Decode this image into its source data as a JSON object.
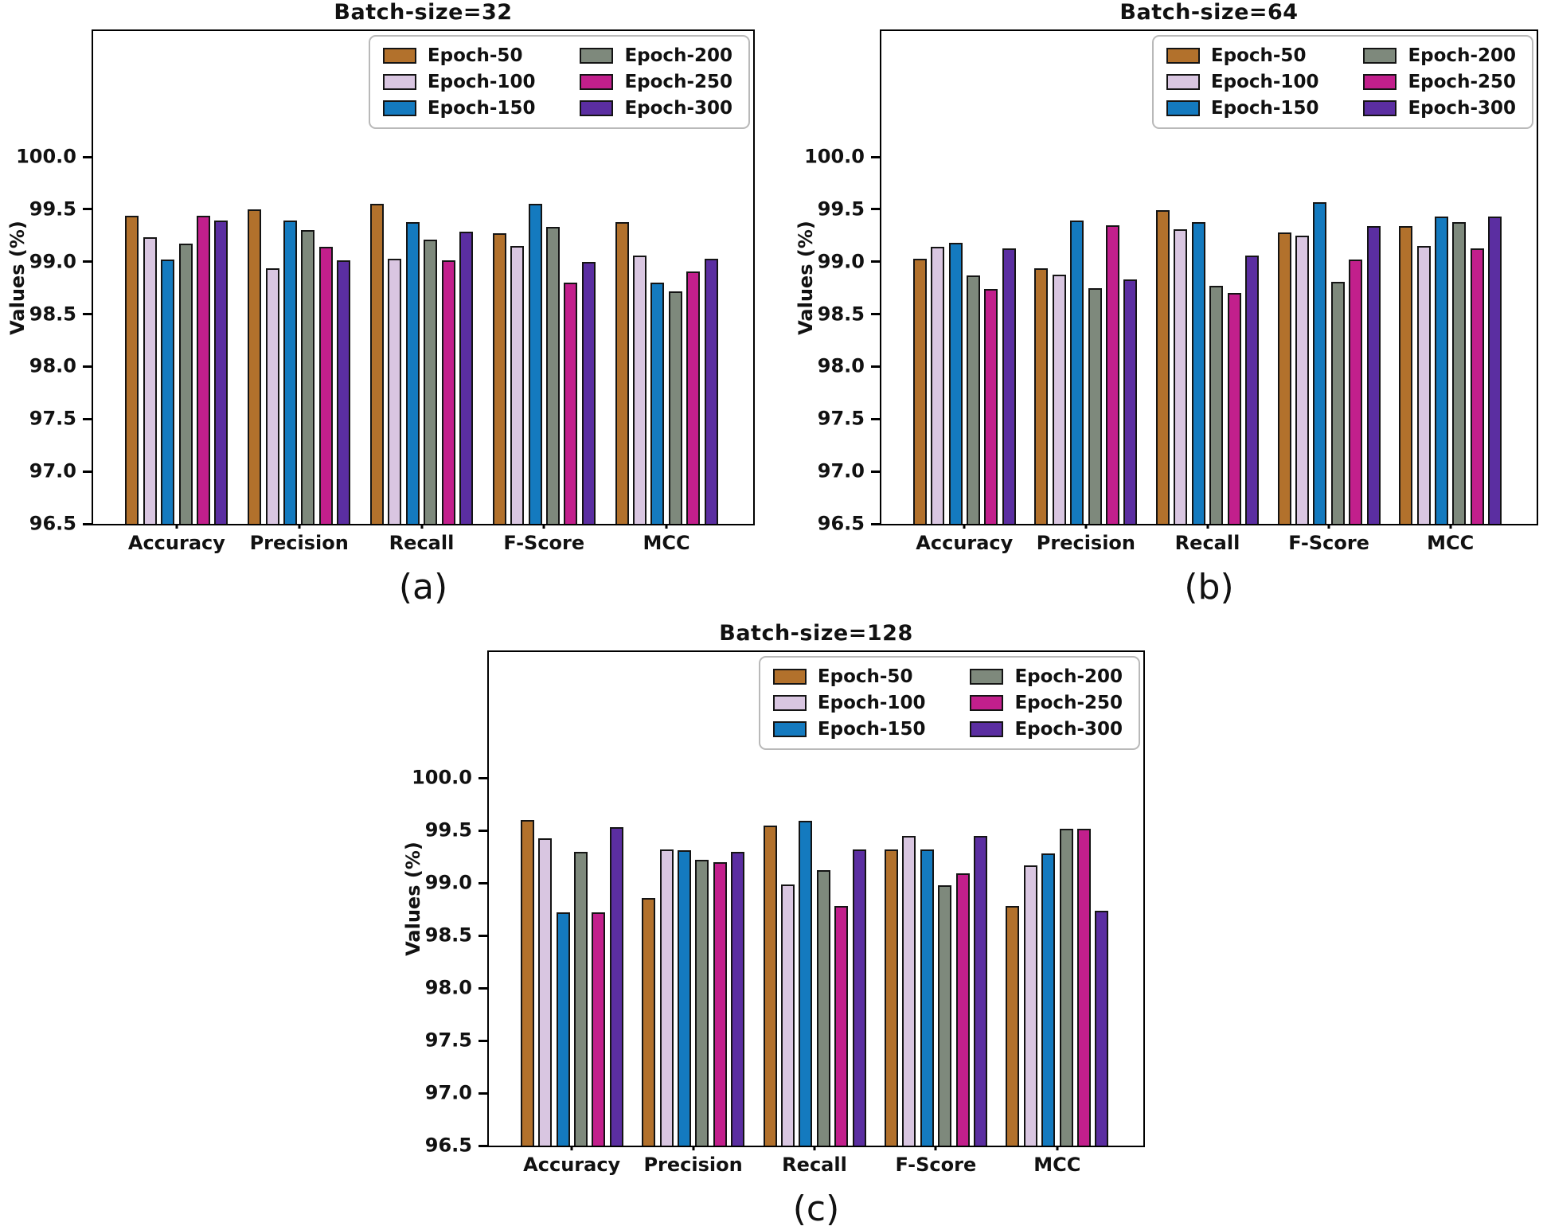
{
  "figure": {
    "ylabel": "Values (%)",
    "categories": [
      "Accuracy",
      "Precision",
      "Recall",
      "F-Score",
      "MCC"
    ],
    "yticks": [
      "100.0",
      "99.5",
      "99.0",
      "98.5",
      "98.0",
      "97.5",
      "97.0",
      "96.5"
    ],
    "ylim": [
      96.5,
      101.2
    ],
    "legend_position": "upper right, 2 columns",
    "grid": "off",
    "legend": [
      {
        "label": "Epoch-50",
        "color": "#b2712c"
      },
      {
        "label": "Epoch-100",
        "color": "#d9c6e1"
      },
      {
        "label": "Epoch-150",
        "color": "#147abf"
      },
      {
        "label": "Epoch-200",
        "color": "#7e897c"
      },
      {
        "label": "Epoch-250",
        "color": "#c21f8c"
      },
      {
        "label": "Epoch-300",
        "color": "#5b2ea1"
      }
    ]
  },
  "chart_data": [
    {
      "type": "bar",
      "id": "chart-a",
      "title": "Batch-size=32",
      "caption": "(a)",
      "xlabel": "",
      "ylabel": "Values (%)",
      "ylim": [
        96.5,
        101.2
      ],
      "categories": [
        "Accuracy",
        "Precision",
        "Recall",
        "F-Score",
        "MCC"
      ],
      "series": [
        {
          "name": "Epoch-50",
          "values": [
            99.44,
            99.5,
            99.55,
            99.27,
            99.38
          ]
        },
        {
          "name": "Epoch-100",
          "values": [
            99.23,
            98.94,
            99.03,
            99.15,
            99.06
          ]
        },
        {
          "name": "Epoch-150",
          "values": [
            99.02,
            99.39,
            99.38,
            99.55,
            98.8
          ]
        },
        {
          "name": "Epoch-200",
          "values": [
            99.17,
            99.3,
            99.21,
            99.33,
            98.72
          ]
        },
        {
          "name": "Epoch-250",
          "values": [
            99.44,
            99.14,
            99.01,
            98.8,
            98.91
          ]
        },
        {
          "name": "Epoch-300",
          "values": [
            99.39,
            99.01,
            99.29,
            99.0,
            99.03
          ]
        }
      ]
    },
    {
      "type": "bar",
      "id": "chart-b",
      "title": "Batch-size=64",
      "caption": "(b)",
      "xlabel": "",
      "ylabel": "Values (%)",
      "ylim": [
        96.5,
        101.2
      ],
      "categories": [
        "Accuracy",
        "Precision",
        "Recall",
        "F-Score",
        "MCC"
      ],
      "series": [
        {
          "name": "Epoch-50",
          "values": [
            99.03,
            98.94,
            99.49,
            99.28,
            99.34
          ]
        },
        {
          "name": "Epoch-100",
          "values": [
            99.14,
            98.88,
            99.31,
            99.25,
            99.15
          ]
        },
        {
          "name": "Epoch-150",
          "values": [
            99.18,
            99.39,
            99.38,
            99.57,
            99.43
          ]
        },
        {
          "name": "Epoch-200",
          "values": [
            98.87,
            98.75,
            98.77,
            98.81,
            99.38
          ]
        },
        {
          "name": "Epoch-250",
          "values": [
            98.74,
            99.35,
            98.7,
            99.02,
            99.13
          ]
        },
        {
          "name": "Epoch-300",
          "values": [
            99.13,
            98.83,
            99.06,
            99.34,
            99.43
          ]
        }
      ]
    },
    {
      "type": "bar",
      "id": "chart-c",
      "title": "Batch-size=128",
      "caption": "(c)",
      "xlabel": "",
      "ylabel": "Values (%)",
      "ylim": [
        96.5,
        101.2
      ],
      "categories": [
        "Accuracy",
        "Precision",
        "Recall",
        "F-Score",
        "MCC"
      ],
      "series": [
        {
          "name": "Epoch-50",
          "values": [
            99.6,
            98.86,
            99.55,
            99.32,
            98.78
          ]
        },
        {
          "name": "Epoch-100",
          "values": [
            99.43,
            99.32,
            98.99,
            99.45,
            99.17
          ]
        },
        {
          "name": "Epoch-150",
          "values": [
            98.72,
            99.31,
            99.59,
            99.32,
            99.28
          ]
        },
        {
          "name": "Epoch-200",
          "values": [
            99.3,
            99.22,
            99.12,
            98.98,
            99.52
          ]
        },
        {
          "name": "Epoch-250",
          "values": [
            98.72,
            99.2,
            98.78,
            99.09,
            99.52
          ]
        },
        {
          "name": "Epoch-300",
          "values": [
            99.53,
            99.3,
            99.32,
            99.45,
            98.74
          ]
        }
      ]
    }
  ]
}
